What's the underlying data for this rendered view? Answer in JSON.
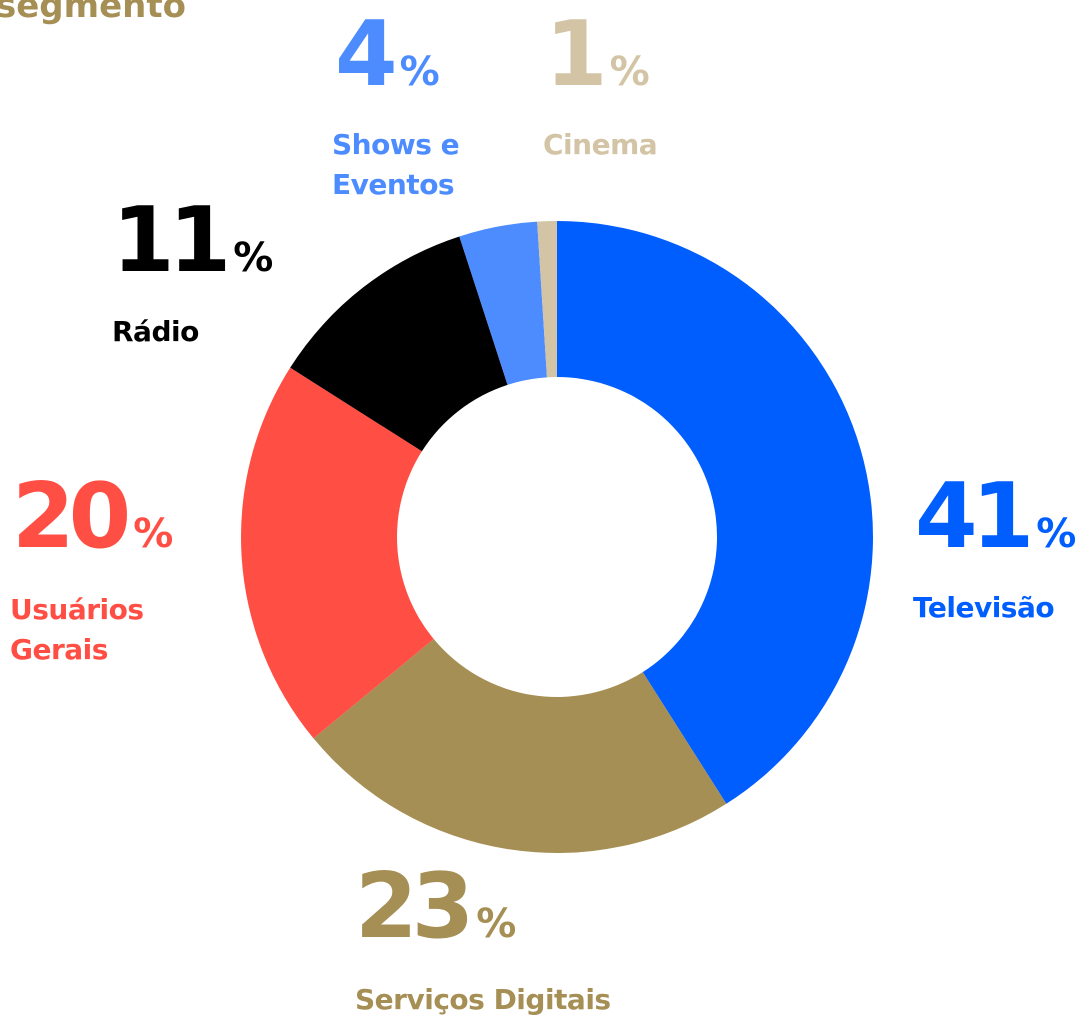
{
  "chart_data": {
    "type": "donut",
    "title": "segmento",
    "categories": [
      "Televisão",
      "Serviços Digitais",
      "Usuários Gerais",
      "Rádio",
      "Shows e Eventos",
      "Cinema"
    ],
    "values": [
      41,
      23,
      20,
      11,
      4,
      1
    ],
    "value_labels": [
      "41%",
      "23%",
      "20%",
      "11%",
      "4%",
      "1%"
    ],
    "colors": [
      "#005eff",
      "#a68f55",
      "#ff4f45",
      "#000000",
      "#4d8cff",
      "#d3c4a5"
    ]
  }
}
